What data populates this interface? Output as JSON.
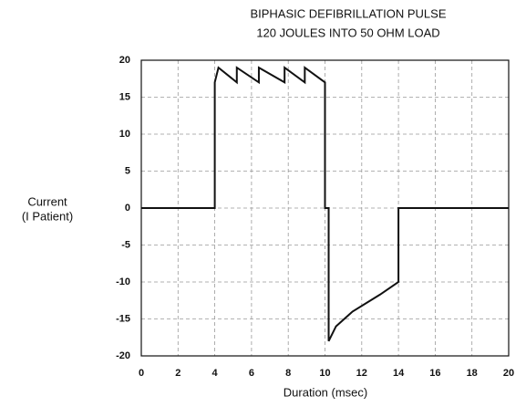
{
  "chart_data": {
    "type": "line",
    "title": [
      "BIPHASIC DEFIBRILLATION PULSE",
      "120 JOULES INTO 50 OHM LOAD"
    ],
    "xlabel": "Duration (msec)",
    "ylabel": [
      "Current",
      "(I Patient)"
    ],
    "xlim": [
      0,
      20
    ],
    "xticks": [
      0,
      2,
      4,
      6,
      8,
      10,
      12,
      14,
      16,
      18,
      20
    ],
    "ylim": [
      -20,
      20
    ],
    "yticks": [
      20,
      15,
      10,
      5,
      0,
      -5,
      -10,
      -15,
      -20
    ],
    "grid": true,
    "series": [
      {
        "color": "#111111",
        "x": [
          0,
          4,
          4,
          4.2,
          5.2,
          5.2,
          6.4,
          6.4,
          7.8,
          7.8,
          8.9,
          8.9,
          10,
          10,
          10.2,
          10.2,
          10.6,
          11.5,
          13,
          14,
          14,
          20
        ],
        "values": [
          0,
          0,
          17,
          19,
          17,
          19,
          17,
          19,
          17,
          19,
          17,
          19,
          17,
          0,
          0,
          -18,
          -16,
          -14,
          -11.7,
          -10,
          0,
          0
        ]
      }
    ]
  }
}
